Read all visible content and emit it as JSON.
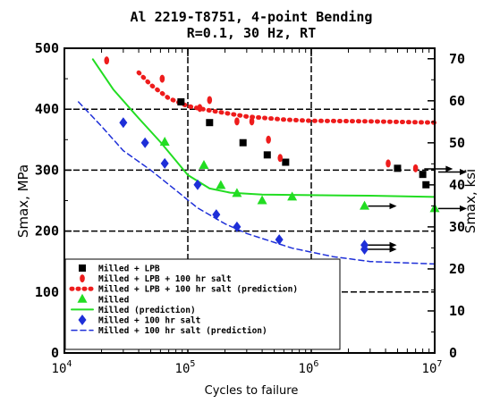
{
  "chart_data": {
    "type": "scatter",
    "title_line1": "Al 2219-T8751, 4-point Bending",
    "title_line2": "R=0.1, 30 Hz, RT",
    "xlabel": "Cycles to failure",
    "ylabel_left": "Smax, MPa",
    "ylabel_right": "Smax, ksi",
    "x_scale": "log",
    "xlim": [
      10000,
      10000000
    ],
    "ylim_left": [
      0,
      500
    ],
    "ylim_right_ksi": [
      0,
      72.5
    ],
    "x_tick_labels": [
      {
        "base": "10",
        "exp": "4",
        "value": 10000
      },
      {
        "base": "10",
        "exp": "5",
        "value": 100000
      },
      {
        "base": "10",
        "exp": "6",
        "value": 1000000
      },
      {
        "base": "10",
        "exp": "7",
        "value": 10000000
      }
    ],
    "y_ticks_left": [
      0,
      100,
      200,
      300,
      400,
      500
    ],
    "y_ticks_right": [
      0,
      10,
      20,
      30,
      40,
      50,
      60,
      70
    ],
    "grid": "dashed black gridlines at each decade and every 100 MPa",
    "legend_position": "lower-left",
    "colors": {
      "milled_lpb": "#000000",
      "milled_lpb_salt": "#ee1c1c",
      "milled": "#22dd22",
      "milled_salt": "#1e2fd8"
    },
    "series": [
      {
        "name": "Milled + LPB",
        "marker": "square",
        "color": "#000000",
        "points": [
          [
            88000,
            412
          ],
          [
            150000,
            378
          ],
          [
            280000,
            345
          ],
          [
            440000,
            325
          ],
          [
            620000,
            313
          ],
          [
            5000000,
            303
          ],
          [
            8000000,
            293
          ],
          [
            8500000,
            276
          ]
        ]
      },
      {
        "name": "Milled + LPB + 100 hr salt",
        "marker": "ellipse",
        "color": "#ee1c1c",
        "points": [
          [
            22000,
            480
          ],
          [
            62000,
            450
          ],
          [
            125000,
            402
          ],
          [
            150000,
            415
          ],
          [
            250000,
            380
          ],
          [
            330000,
            380
          ],
          [
            450000,
            350
          ],
          [
            560000,
            320
          ],
          [
            4200000,
            311
          ],
          [
            7000000,
            303
          ]
        ]
      },
      {
        "name": "Milled + LPB + 100 hr salt (prediction)",
        "line": "dotted",
        "color": "#ee1c1c",
        "points": [
          [
            40000,
            460
          ],
          [
            50000,
            440
          ],
          [
            70000,
            418
          ],
          [
            100000,
            405
          ],
          [
            150000,
            398
          ],
          [
            300000,
            388
          ],
          [
            600000,
            383
          ],
          [
            1000000,
            381
          ],
          [
            3000000,
            380
          ],
          [
            10000000,
            378
          ]
        ]
      },
      {
        "name": "Milled",
        "marker": "triangle",
        "color": "#22dd22",
        "points": [
          [
            65000,
            346
          ],
          [
            135000,
            308
          ],
          [
            185000,
            275
          ],
          [
            250000,
            262
          ],
          [
            400000,
            250
          ],
          [
            700000,
            256
          ],
          [
            2700000,
            241
          ],
          [
            10000000,
            237
          ]
        ]
      },
      {
        "name": "Milled (prediction)",
        "line": "solid",
        "color": "#22dd22",
        "points": [
          [
            17000,
            482
          ],
          [
            25000,
            432
          ],
          [
            40000,
            385
          ],
          [
            60000,
            346
          ],
          [
            100000,
            292
          ],
          [
            150000,
            270
          ],
          [
            220000,
            263
          ],
          [
            400000,
            260
          ],
          [
            1000000,
            259
          ],
          [
            3000000,
            258
          ],
          [
            10000000,
            256
          ]
        ]
      },
      {
        "name": "Milled + 100 hr salt",
        "marker": "diamond",
        "color": "#1e2fd8",
        "points": [
          [
            30000,
            378
          ],
          [
            45000,
            345
          ],
          [
            65000,
            311
          ],
          [
            120000,
            276
          ],
          [
            170000,
            227
          ],
          [
            250000,
            207
          ],
          [
            550000,
            186
          ],
          [
            2700000,
            177
          ],
          [
            2700000,
            170
          ]
        ]
      },
      {
        "name": "Milled + 100 hr salt (prediction)",
        "line": "dashed",
        "color": "#1e2fd8",
        "points": [
          [
            13000,
            412
          ],
          [
            20000,
            372
          ],
          [
            30000,
            332
          ],
          [
            50000,
            300
          ],
          [
            80000,
            267
          ],
          [
            120000,
            238
          ],
          [
            200000,
            212
          ],
          [
            300000,
            196
          ],
          [
            700000,
            172
          ],
          [
            1500000,
            158
          ],
          [
            3000000,
            150
          ],
          [
            10000000,
            146
          ]
        ]
      }
    ],
    "runouts": [
      {
        "x": 7700000,
        "y": 302,
        "color": "#000000",
        "arrow": "right"
      },
      {
        "x": 10000000,
        "y": 297,
        "color": "#000000",
        "arrow": "right"
      },
      {
        "x": 2700000,
        "y": 241,
        "color": "#000000",
        "arrow": "right"
      },
      {
        "x": 10000000,
        "y": 237,
        "color": "#000000",
        "arrow": "right"
      },
      {
        "x": 2700000,
        "y": 177,
        "color": "#000000",
        "arrow": "right"
      },
      {
        "x": 2700000,
        "y": 170,
        "color": "#000000",
        "arrow": "right"
      }
    ]
  }
}
